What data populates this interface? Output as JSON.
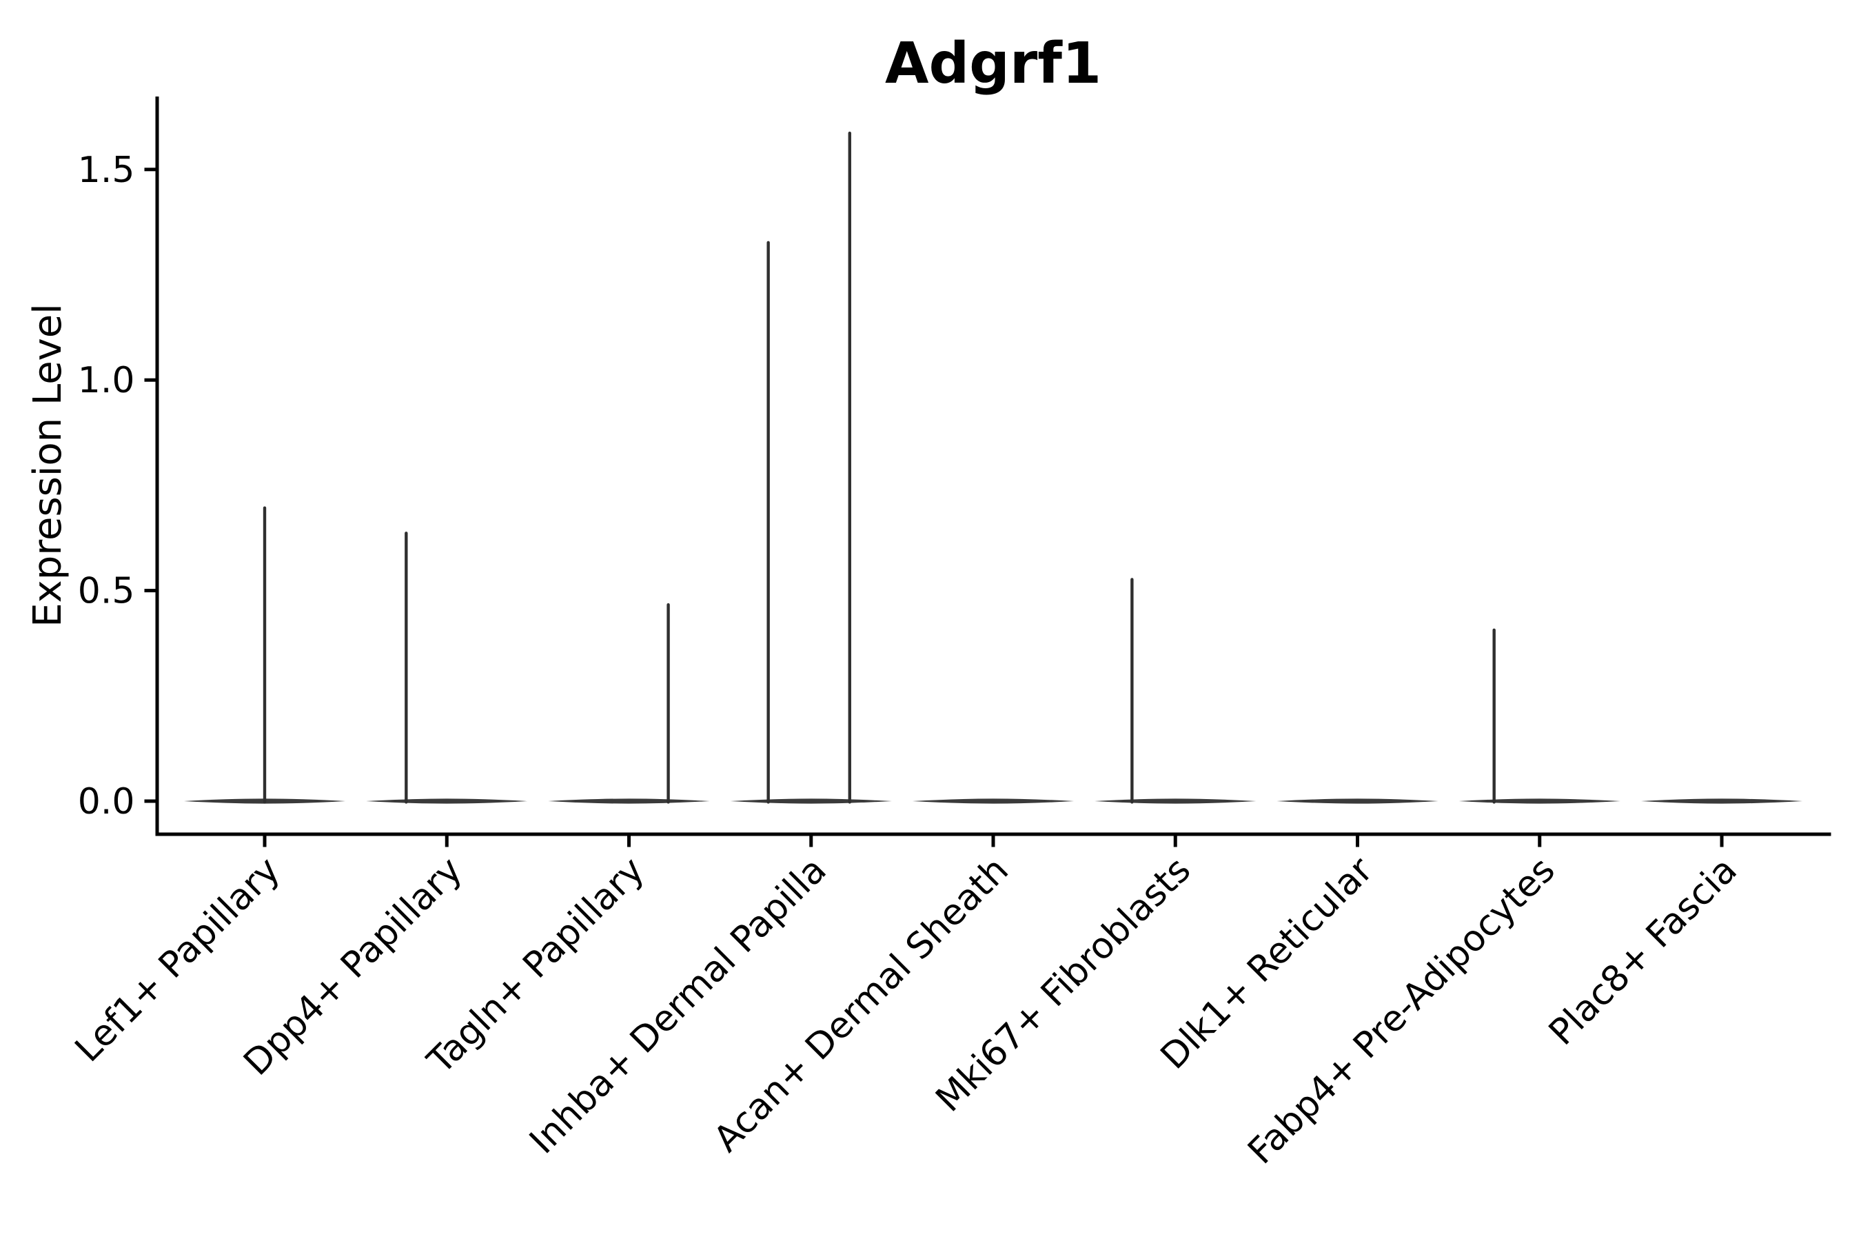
{
  "chart_data": {
    "type": "violin",
    "title": "Adgrf1",
    "xlabel": "",
    "ylabel": "Expression Level",
    "categories": [
      "Lef1+ Papillary",
      "Dpp4+ Papillary",
      "Tagln+ Papillary",
      "Inhba+ Dermal Papilla",
      "Acan+ Dermal Sheath",
      "Mki67+ Fibroblasts",
      "Dlk1+ Reticular",
      "Fabp4+ Pre-Adipocytes",
      "Plac8+ Fascia"
    ],
    "yticks": [
      0.0,
      0.5,
      1.0,
      1.5
    ],
    "ytick_labels": [
      "0.0",
      "0.5",
      "1.0",
      "1.5"
    ],
    "ylim": [
      -0.08,
      1.67
    ],
    "grid": false,
    "legend": false,
    "x_tick_rotation_deg": 45,
    "violins": [
      {
        "category": "Lef1+ Papillary",
        "base_value": 0.0,
        "base_halfwidth_frac": 0.443,
        "spikes": [
          {
            "value": 0.7,
            "offset_frac": 0.0
          }
        ]
      },
      {
        "category": "Dpp4+ Papillary",
        "base_value": 0.0,
        "base_halfwidth_frac": 0.443,
        "spikes": [
          {
            "value": 0.64,
            "offset_frac": -0.223
          }
        ]
      },
      {
        "category": "Tagln+ Papillary",
        "base_value": 0.0,
        "base_halfwidth_frac": 0.443,
        "spikes": [
          {
            "value": 0.47,
            "offset_frac": 0.216
          }
        ]
      },
      {
        "category": "Inhba+ Dermal Papilla",
        "base_value": 0.0,
        "base_halfwidth_frac": 0.443,
        "spikes": [
          {
            "value": 1.33,
            "offset_frac": -0.235
          },
          {
            "value": 1.59,
            "offset_frac": 0.212
          }
        ]
      },
      {
        "category": "Acan+ Dermal Sheath",
        "base_value": 0.0,
        "base_halfwidth_frac": 0.443,
        "spikes": []
      },
      {
        "category": "Mki67+ Fibroblasts",
        "base_value": 0.0,
        "base_halfwidth_frac": 0.443,
        "spikes": [
          {
            "value": 0.53,
            "offset_frac": -0.238
          }
        ]
      },
      {
        "category": "Dlk1+ Reticular",
        "base_value": 0.0,
        "base_halfwidth_frac": 0.443,
        "spikes": []
      },
      {
        "category": "Fabp4+ Pre-Adipocytes",
        "base_value": 0.0,
        "base_halfwidth_frac": 0.443,
        "spikes": [
          {
            "value": 0.41,
            "offset_frac": -0.25
          }
        ]
      },
      {
        "category": "Plac8+ Fascia",
        "base_value": 0.0,
        "base_halfwidth_frac": 0.443,
        "spikes": []
      }
    ],
    "colors": {
      "background": "#ffffff",
      "axis": "#000000",
      "text": "#000000",
      "violin_body": "#3a3a3a",
      "violin_spike": "#2f2f2f"
    }
  }
}
